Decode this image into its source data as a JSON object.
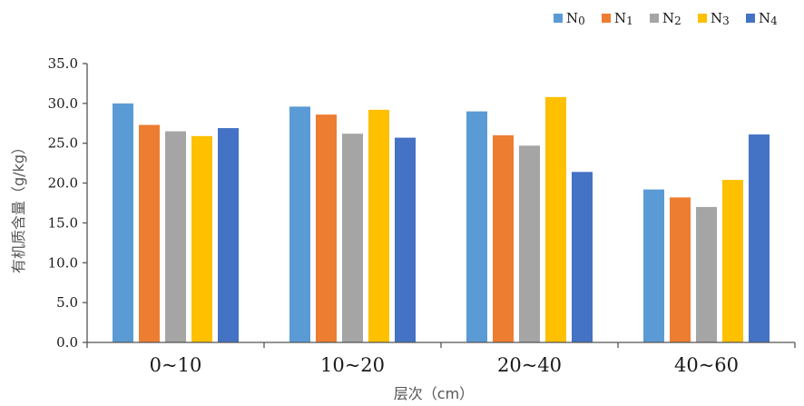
{
  "chart_data": {
    "type": "bar",
    "title": "",
    "xlabel": "层次（cm）",
    "ylabel": "有机质含量（g/kg）",
    "categories": [
      "0~10",
      "10~20",
      "20~40",
      "40~60"
    ],
    "ylim": [
      0,
      35
    ],
    "yticks": [
      0,
      5,
      10,
      15,
      20,
      25,
      30,
      35
    ],
    "ytick_labels": [
      "0.0",
      "5.0",
      "10.0",
      "15.0",
      "20.0",
      "25.0",
      "30.0",
      "35.0"
    ],
    "grid": false,
    "legend_position": "top-right",
    "series": [
      {
        "name": "N0",
        "color": "#5B9BD5",
        "values": [
          30.0,
          29.6,
          29.0,
          19.2
        ]
      },
      {
        "name": "N1",
        "color": "#ED7D31",
        "values": [
          27.3,
          28.6,
          26.0,
          18.2
        ]
      },
      {
        "name": "N2",
        "color": "#A5A5A5",
        "values": [
          26.5,
          26.2,
          24.7,
          17.0
        ]
      },
      {
        "name": "N3",
        "color": "#FFC000",
        "values": [
          25.9,
          29.2,
          30.8,
          20.4
        ]
      },
      {
        "name": "N4",
        "color": "#4472C4",
        "values": [
          26.9,
          25.7,
          21.4,
          26.1
        ]
      }
    ]
  }
}
